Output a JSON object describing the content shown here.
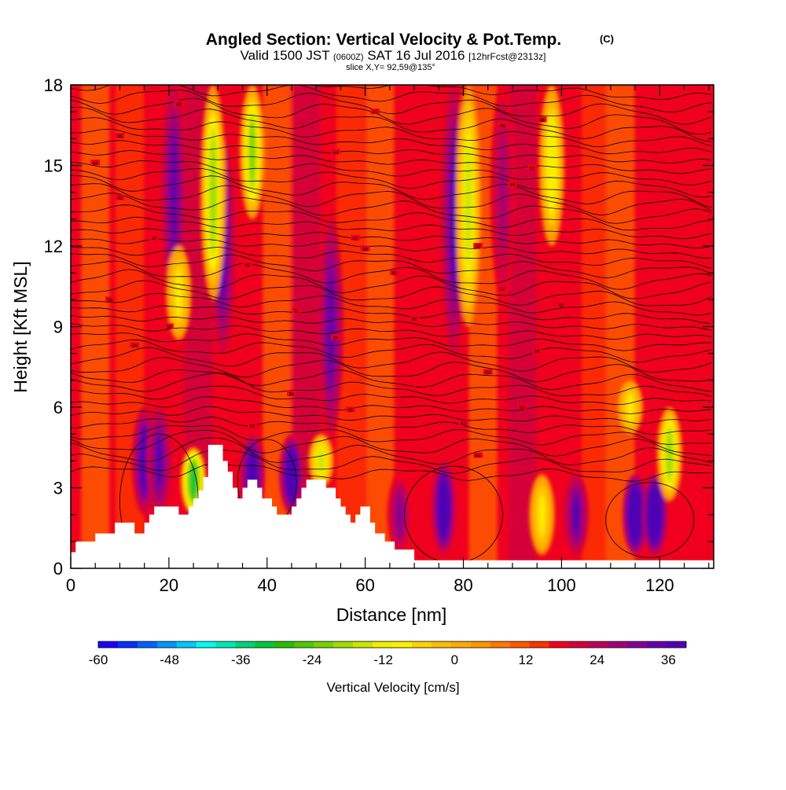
{
  "header": {
    "title": "Angled Section: Vertical Velocity & Pot.Temp.",
    "title_unit": "(C)",
    "valid_prefix": "Valid 1500 JST",
    "valid_zulu": "(0600Z)",
    "valid_date": "SAT 16 Jul 2016",
    "forecast": "[12hrFcst@2313z]",
    "slice": "slice X,Y= 92,59@135°"
  },
  "chart_data": {
    "type": "heatmap",
    "xlabel": "Distance [nm]",
    "ylabel": "Height [Kft MSL]",
    "xlim": [
      0,
      131
    ],
    "ylim": [
      0,
      18
    ],
    "x_ticks": [
      "0",
      "20",
      "40",
      "60",
      "80",
      "100",
      "120"
    ],
    "y_ticks": [
      "0",
      "3",
      "6",
      "9",
      "12",
      "15",
      "18"
    ],
    "colorbar": {
      "label": "Vertical Velocity [cm/s]",
      "range": [
        -60,
        39
      ],
      "step": 3,
      "tick_labels": [
        "-60",
        "-48",
        "-36",
        "-24",
        "-12",
        "0",
        "12",
        "24",
        "36"
      ],
      "colors": [
        "#1c00fa",
        "#0032fa",
        "#0064fa",
        "#0096fa",
        "#00c8fa",
        "#00faf0",
        "#00e6b4",
        "#00d278",
        "#00c83c",
        "#28be00",
        "#50c800",
        "#78d200",
        "#a0dc00",
        "#c8e600",
        "#f0f000",
        "#fff000",
        "#ffd200",
        "#ffbe00",
        "#ffaa00",
        "#ff9600",
        "#ff7800",
        "#ff5a00",
        "#ff3200",
        "#f0001e",
        "#d2003c",
        "#be005a",
        "#a00078",
        "#820096",
        "#6400aa",
        "#5000b4"
      ]
    },
    "updrafts": [
      {
        "x": 21,
        "zmin": 10,
        "zmax": 18,
        "w": 24
      },
      {
        "x": 31,
        "zmin": 8,
        "zmax": 16,
        "w": 27
      },
      {
        "x": 15,
        "zmin": 2,
        "zmax": 6,
        "w": 30
      },
      {
        "x": 18,
        "zmin": 2,
        "zmax": 6,
        "w": 27
      },
      {
        "x": 45,
        "zmin": 2,
        "zmax": 5,
        "w": 36
      },
      {
        "x": 37,
        "zmin": 2,
        "zmax": 5,
        "w": 33
      },
      {
        "x": 53,
        "zmin": 5,
        "zmax": 13,
        "w": 24
      },
      {
        "x": 76,
        "zmin": 0.5,
        "zmax": 4,
        "w": 36
      },
      {
        "x": 78,
        "zmin": 8,
        "zmax": 18,
        "w": 27
      },
      {
        "x": 88,
        "zmin": 10,
        "zmax": 18,
        "w": 18
      },
      {
        "x": 103,
        "zmin": 0.5,
        "zmax": 3.5,
        "w": 27
      },
      {
        "x": 115,
        "zmin": 0.5,
        "zmax": 3.5,
        "w": 39
      },
      {
        "x": 119,
        "zmin": 0.5,
        "zmax": 3.5,
        "w": 39
      },
      {
        "x": 67,
        "zmin": 0.5,
        "zmax": 3.5,
        "w": 21
      }
    ],
    "downdrafts": [
      {
        "x": 29,
        "zmin": 10,
        "zmax": 18,
        "w": -24
      },
      {
        "x": 37,
        "zmin": 13,
        "zmax": 18,
        "w": -27
      },
      {
        "x": 25,
        "zmin": 2,
        "zmax": 4.5,
        "w": -36
      },
      {
        "x": 22,
        "zmin": 8.5,
        "zmax": 12,
        "w": -15
      },
      {
        "x": 51,
        "zmin": 3,
        "zmax": 5,
        "w": -21
      },
      {
        "x": 81,
        "zmin": 9,
        "zmax": 18,
        "w": -21
      },
      {
        "x": 98,
        "zmin": 12,
        "zmax": 18,
        "w": -18
      },
      {
        "x": 122,
        "zmin": 2.5,
        "zmax": 6,
        "w": -24
      },
      {
        "x": 114,
        "zmin": 5,
        "zmax": 7,
        "w": -15
      },
      {
        "x": 96,
        "zmin": 0.5,
        "zmax": 3.5,
        "w": -15
      }
    ],
    "terrain": [
      {
        "x": 0,
        "z": 0.6
      },
      {
        "x": 1,
        "z": 1.0
      },
      {
        "x": 5,
        "z": 1.3
      },
      {
        "x": 9,
        "z": 1.7
      },
      {
        "x": 13,
        "z": 1.3
      },
      {
        "x": 15,
        "z": 1.7
      },
      {
        "x": 16,
        "z": 2.0
      },
      {
        "x": 17,
        "z": 2.3
      },
      {
        "x": 22,
        "z": 2.0
      },
      {
        "x": 24,
        "z": 2.3
      },
      {
        "x": 25,
        "z": 2.6
      },
      {
        "x": 26,
        "z": 2.9
      },
      {
        "x": 27,
        "z": 3.4
      },
      {
        "x": 28,
        "z": 4.6
      },
      {
        "x": 31,
        "z": 4.0
      },
      {
        "x": 32,
        "z": 3.6
      },
      {
        "x": 33,
        "z": 3.0
      },
      {
        "x": 34,
        "z": 2.6
      },
      {
        "x": 35,
        "z": 3.0
      },
      {
        "x": 36,
        "z": 3.3
      },
      {
        "x": 38,
        "z": 3.0
      },
      {
        "x": 39,
        "z": 2.6
      },
      {
        "x": 41,
        "z": 2.3
      },
      {
        "x": 42,
        "z": 2.0
      },
      {
        "x": 45,
        "z": 2.3
      },
      {
        "x": 46,
        "z": 2.6
      },
      {
        "x": 47,
        "z": 3.0
      },
      {
        "x": 48,
        "z": 3.3
      },
      {
        "x": 52,
        "z": 3.0
      },
      {
        "x": 54,
        "z": 2.6
      },
      {
        "x": 55,
        "z": 2.3
      },
      {
        "x": 56,
        "z": 2.0
      },
      {
        "x": 57,
        "z": 1.7
      },
      {
        "x": 58,
        "z": 2.0
      },
      {
        "x": 59,
        "z": 2.3
      },
      {
        "x": 61,
        "z": 1.7
      },
      {
        "x": 62,
        "z": 1.3
      },
      {
        "x": 64,
        "z": 1.0
      },
      {
        "x": 66,
        "z": 0.7
      },
      {
        "x": 70,
        "z": 0.3
      },
      {
        "x": 131,
        "z": 0.3
      }
    ],
    "theta_contours_c": {
      "min": 34,
      "max": 64,
      "interval": 1,
      "labeled": [
        "34",
        "36",
        "38",
        "40",
        "42",
        "44",
        "46",
        "48",
        "50",
        "52",
        "54",
        "56",
        "58",
        "60",
        "62",
        "64"
      ]
    }
  }
}
